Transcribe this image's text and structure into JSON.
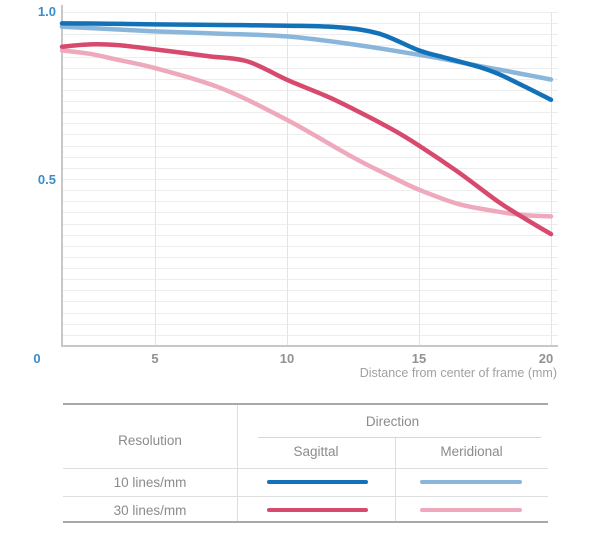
{
  "chart_data": {
    "type": "line",
    "title": "",
    "xlabel": "Distance from center of frame (mm)",
    "ylabel": "",
    "xlim": [
      0,
      20
    ],
    "ylim": [
      0,
      1.0
    ],
    "x_ticks": [
      5,
      10,
      15,
      20
    ],
    "x_tick_labels": [
      "5",
      "10",
      "15",
      "20"
    ],
    "y_ticks": [
      0,
      0.5,
      1.0
    ],
    "y_tick_labels": [
      "0",
      "0.5",
      "1.0"
    ],
    "grid": "fine horizontal lines every 0.033 units; vertical lines at x ticks",
    "legend_position": "table below chart",
    "series": [
      {
        "name": "10 lines/mm Sagittal",
        "color": "#1371b7",
        "x": [
          0,
          2.5,
          5,
          7.5,
          10,
          12,
          13.5,
          15,
          16,
          17.3,
          18,
          19,
          20
        ],
        "y": [
          0.966,
          0.965,
          0.963,
          0.961,
          0.959,
          0.954,
          0.935,
          0.885,
          0.863,
          0.835,
          0.815,
          0.777,
          0.737
        ]
      },
      {
        "name": "10 lines/mm Meridional",
        "color": "#8ab6dc",
        "x": [
          0,
          2.5,
          5,
          7.5,
          10,
          12.5,
          15,
          16,
          17.3,
          18,
          19,
          20
        ],
        "y": [
          0.956,
          0.949,
          0.942,
          0.935,
          0.927,
          0.903,
          0.872,
          0.858,
          0.838,
          0.828,
          0.813,
          0.798
        ]
      },
      {
        "name": "30 lines/mm Sagittal",
        "color": "#d74a6e",
        "x": [
          0,
          1.5,
          3,
          5,
          7,
          8.5,
          10,
          11.5,
          12.5,
          14,
          15,
          16.5,
          18,
          19,
          20
        ],
        "y": [
          0.896,
          0.903,
          0.901,
          0.888,
          0.868,
          0.852,
          0.797,
          0.748,
          0.71,
          0.648,
          0.6,
          0.52,
          0.432,
          0.382,
          0.335
        ]
      },
      {
        "name": "30 lines/mm Meridional",
        "color": "#efa9bc",
        "x": [
          0,
          1.5,
          3,
          5,
          7.5,
          10,
          12.5,
          14,
          15,
          16.5,
          18,
          19,
          20
        ],
        "y": [
          0.885,
          0.875,
          0.857,
          0.832,
          0.772,
          0.677,
          0.565,
          0.505,
          0.468,
          0.425,
          0.402,
          0.392,
          0.388
        ]
      }
    ]
  },
  "axis": {
    "x_title": "Distance from center of frame (mm)"
  },
  "legend_table": {
    "resolution_header": "Resolution",
    "direction_header": "Direction",
    "sagittal_header": "Sagittal",
    "meridional_header": "Meridional",
    "rows": [
      {
        "label": "10 lines/mm",
        "sagittal_color": "#1371b7",
        "meridional_color": "#8ab6dc"
      },
      {
        "label": "30 lines/mm",
        "sagittal_color": "#d74a6e",
        "meridional_color": "#efa9bc"
      }
    ]
  },
  "colors": {
    "axis_line": "#c8c8c8",
    "grid_h": "#ededed",
    "grid_v": "#e4e4e4",
    "y_label_blue": "#3a8dc8",
    "tick_gray": "#8f9193",
    "axis_title_gray": "#9fa1a3",
    "table_border": "#a8a8a8",
    "table_line": "#dedede",
    "table_text": "#898b8d"
  }
}
